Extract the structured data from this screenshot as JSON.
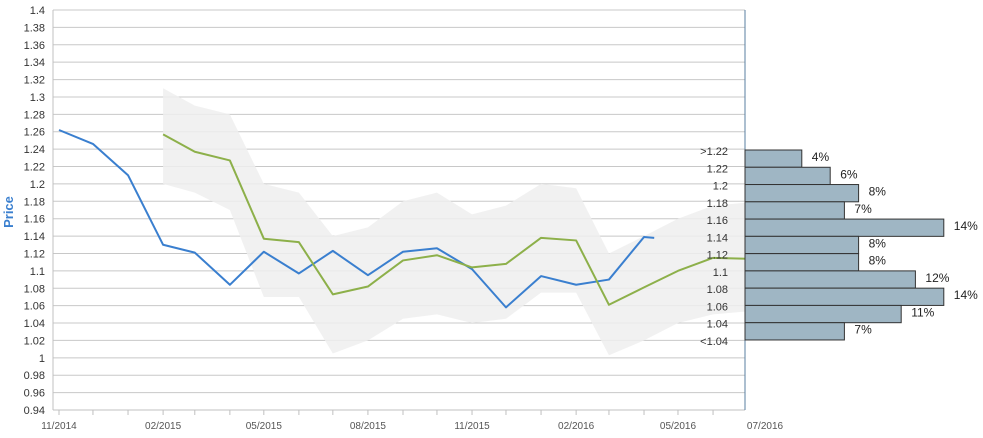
{
  "chart_data": {
    "type": "line",
    "ylabel": "Price",
    "ylim": [
      0.94,
      1.4
    ],
    "y_ticks": [
      "1.4",
      "1.38",
      "1.36",
      "1.34",
      "1.32",
      "1.3",
      "1.28",
      "1.26",
      "1.24",
      "1.22",
      "1.2",
      "1.18",
      "1.16",
      "1.14",
      "1.12",
      "1.1",
      "1.08",
      "1.06",
      "1.04",
      "1.02",
      "1",
      "0.98",
      "0.96",
      "0.94"
    ],
    "x_range": [
      "2014-11-01",
      "2016-07-15"
    ],
    "x_ticks": [
      "11/2014",
      "02/2015",
      "05/2015",
      "08/2015",
      "11/2015",
      "02/2016",
      "05/2016",
      "07/2016"
    ],
    "grid": true,
    "colors": {
      "blue_series": "#3a7fcf",
      "green_series": "#8db04a",
      "band": "#eeeeee",
      "histogram": "#9fb6c4",
      "ylabel": "#3a7fcf"
    },
    "series": [
      {
        "values": [
          {
            "x": "2014-11-01",
            "y": 1.262
          },
          {
            "x": "2014-12-01",
            "y": 1.246
          },
          {
            "x": "2015-01-01",
            "y": 1.21
          },
          {
            "x": "2015-02-01",
            "y": 1.13
          },
          {
            "x": "2015-03-01",
            "y": 1.121
          },
          {
            "x": "2015-04-01",
            "y": 1.084
          },
          {
            "x": "2015-05-01",
            "y": 1.122
          },
          {
            "x": "2015-06-01",
            "y": 1.097
          },
          {
            "x": "2015-07-01",
            "y": 1.123
          },
          {
            "x": "2015-08-01",
            "y": 1.095
          },
          {
            "x": "2015-09-01",
            "y": 1.122
          },
          {
            "x": "2015-10-01",
            "y": 1.126
          },
          {
            "x": "2015-11-01",
            "y": 1.102
          },
          {
            "x": "2015-12-01",
            "y": 1.058
          },
          {
            "x": "2016-01-01",
            "y": 1.094
          },
          {
            "x": "2016-02-01",
            "y": 1.084
          },
          {
            "x": "2016-03-01",
            "y": 1.09
          },
          {
            "x": "2016-04-01",
            "y": 1.139
          },
          {
            "x": "2016-04-10",
            "y": 1.138
          }
        ]
      },
      {
        "values": [
          {
            "x": "2015-02-01",
            "y": 1.257
          },
          {
            "x": "2015-03-01",
            "y": 1.237
          },
          {
            "x": "2015-04-01",
            "y": 1.227
          },
          {
            "x": "2015-05-01",
            "y": 1.137
          },
          {
            "x": "2015-06-01",
            "y": 1.133
          },
          {
            "x": "2015-07-01",
            "y": 1.073
          },
          {
            "x": "2015-08-01",
            "y": 1.082
          },
          {
            "x": "2015-09-01",
            "y": 1.112
          },
          {
            "x": "2015-10-01",
            "y": 1.118
          },
          {
            "x": "2015-11-01",
            "y": 1.104
          },
          {
            "x": "2015-12-01",
            "y": 1.108
          },
          {
            "x": "2016-01-01",
            "y": 1.138
          },
          {
            "x": "2016-02-01",
            "y": 1.135
          },
          {
            "x": "2016-03-01",
            "y": 1.061
          },
          {
            "x": "2016-04-01",
            "y": 1.081
          },
          {
            "x": "2016-05-01",
            "y": 1.1
          },
          {
            "x": "2016-06-01",
            "y": 1.115
          },
          {
            "x": "2016-07-01",
            "y": 1.114
          },
          {
            "x": "2016-07-15",
            "y": 1.12
          }
        ]
      }
    ],
    "band": [
      {
        "x": "2015-02-01",
        "high": 1.31,
        "low": 1.2
      },
      {
        "x": "2015-03-01",
        "high": 1.29,
        "low": 1.19
      },
      {
        "x": "2015-04-01",
        "high": 1.28,
        "low": 1.17
      },
      {
        "x": "2015-05-01",
        "high": 1.2,
        "low": 1.07
      },
      {
        "x": "2015-06-01",
        "high": 1.19,
        "low": 1.07
      },
      {
        "x": "2015-07-01",
        "high": 1.14,
        "low": 1.005
      },
      {
        "x": "2015-08-01",
        "high": 1.15,
        "low": 1.02
      },
      {
        "x": "2015-09-01",
        "high": 1.18,
        "low": 1.045
      },
      {
        "x": "2015-10-01",
        "high": 1.19,
        "low": 1.05
      },
      {
        "x": "2015-11-01",
        "high": 1.165,
        "low": 1.04
      },
      {
        "x": "2015-12-01",
        "high": 1.175,
        "low": 1.045
      },
      {
        "x": "2016-01-01",
        "high": 1.2,
        "low": 1.075
      },
      {
        "x": "2016-02-01",
        "high": 1.195,
        "low": 1.075
      },
      {
        "x": "2016-03-01",
        "high": 1.12,
        "low": 1.003
      },
      {
        "x": "2016-04-01",
        "high": 1.14,
        "low": 1.02
      },
      {
        "x": "2016-05-01",
        "high": 1.16,
        "low": 1.04
      },
      {
        "x": "2016-06-01",
        "high": 1.175,
        "low": 1.05
      },
      {
        "x": "2016-07-15",
        "high": 1.18,
        "low": 1.055
      }
    ],
    "distribution": [
      {
        "bucket": ">1.22",
        "pct": 4,
        "label": "4%"
      },
      {
        "bucket": "1.22",
        "pct": 6,
        "label": "6%"
      },
      {
        "bucket": "1.2",
        "pct": 8,
        "label": "8%"
      },
      {
        "bucket": "1.18",
        "pct": 7,
        "label": "7%"
      },
      {
        "bucket": "1.16",
        "pct": 14,
        "label": "14%"
      },
      {
        "bucket": "1.14",
        "pct": 8,
        "label": "8%"
      },
      {
        "bucket": "1.12",
        "pct": 8,
        "label": "8%"
      },
      {
        "bucket": "1.1",
        "pct": 12,
        "label": "12%"
      },
      {
        "bucket": "1.08",
        "pct": 14,
        "label": "14%"
      },
      {
        "bucket": "1.06",
        "pct": 11,
        "label": "11%"
      },
      {
        "bucket": "1.04",
        "pct": 7,
        "label": "7%"
      },
      {
        "bucket": "<1.04",
        "pct": null,
        "label": ""
      }
    ]
  }
}
